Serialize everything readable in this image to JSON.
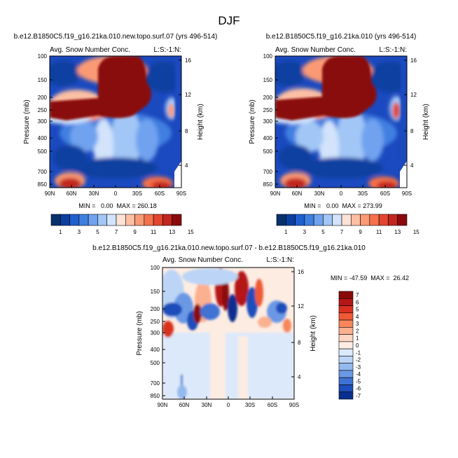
{
  "figure": {
    "title": "DJF"
  },
  "chart_data": [
    {
      "type": "heatmap",
      "id": "panel-left",
      "title": "b.e12.B1850C5.f19_g16.21ka.010.new.topo.surf.07 (yrs 496-514)",
      "subtitle_left": "Avg. Snow Number Conc.",
      "subtitle_right": "L:S:-1:N:",
      "ylabel": "Pressure (mb)",
      "ylabel_right": "Height (km)",
      "x_ticks": [
        "90N",
        "60N",
        "30N",
        "0",
        "30S",
        "60S",
        "90S"
      ],
      "y_ticks": [
        "100",
        "150",
        "200",
        "250",
        "300",
        "400",
        "500",
        "700",
        "850"
      ],
      "y_ticks_right": [
        "16",
        "12",
        "8",
        "4"
      ],
      "stats": "MIN =   0.00  MAX = 260.18",
      "colorbar_labels": [
        "1",
        "3",
        "5",
        "7",
        "9",
        "11",
        "13",
        "15"
      ]
    },
    {
      "type": "heatmap",
      "id": "panel-right",
      "title": "b.e12.B1850C5.f19_g16.21ka.010 (yrs 496-514)",
      "subtitle_left": "Avg. Snow Number Conc.",
      "subtitle_right": "L:S:-1:N:",
      "ylabel": "Pressure (mb)",
      "ylabel_right": "Height (km)",
      "x_ticks": [
        "90N",
        "60N",
        "30N",
        "0",
        "30S",
        "60S",
        "90S"
      ],
      "y_ticks": [
        "100",
        "150",
        "200",
        "250",
        "300",
        "400",
        "500",
        "700",
        "850"
      ],
      "y_ticks_right": [
        "16",
        "12",
        "8",
        "4"
      ],
      "stats": "MIN =   0.00  MAX = 273.99",
      "colorbar_labels": [
        "1",
        "3",
        "5",
        "7",
        "9",
        "11",
        "13",
        "15"
      ]
    },
    {
      "type": "heatmap",
      "id": "panel-diff",
      "title": "b.e12.B1850C5.f19_g16.21ka.010.new.topo.surf.07 - b.e12.B1850C5.f19_g16.21ka.010",
      "subtitle_left": "Avg. Snow Number Conc.",
      "subtitle_right": "L:S:-1:N:",
      "ylabel": "Pressure (mb)",
      "ylabel_right": "Height (km)",
      "x_ticks": [
        "90N",
        "60N",
        "30N",
        "0",
        "30S",
        "60S",
        "90S"
      ],
      "y_ticks": [
        "100",
        "150",
        "200",
        "250",
        "300",
        "400",
        "500",
        "700",
        "850"
      ],
      "y_ticks_right": [
        "16",
        "12",
        "8",
        "4"
      ],
      "stats": "MIN = -47.59  MAX =  26.42",
      "colorbar_labels": [
        "7",
        "6",
        "5",
        "4",
        "3",
        "2",
        "1",
        "0",
        "-1",
        "-2",
        "-3",
        "-4",
        "-5",
        "-6",
        "-7"
      ]
    }
  ],
  "colors": {
    "seq": [
      "#08306b",
      "#0b3fa0",
      "#1f5fcf",
      "#3f7fe0",
      "#6fa2ef",
      "#a2c6f6",
      "#d2e3fb",
      "#fde3d6",
      "#fcbfa4",
      "#fa9a74",
      "#f5714c",
      "#e24530",
      "#c2261e",
      "#8a0a0a"
    ],
    "div": [
      "#8a0a0a",
      "#b51616",
      "#d9301f",
      "#ef5a35",
      "#f8865d",
      "#fbb08f",
      "#fdd6c3",
      "#fdece2",
      "#dbe9fb",
      "#bcd5f6",
      "#93b9ef",
      "#6b98e4",
      "#3f72d4",
      "#1d4ebb",
      "#082f8f"
    ]
  }
}
